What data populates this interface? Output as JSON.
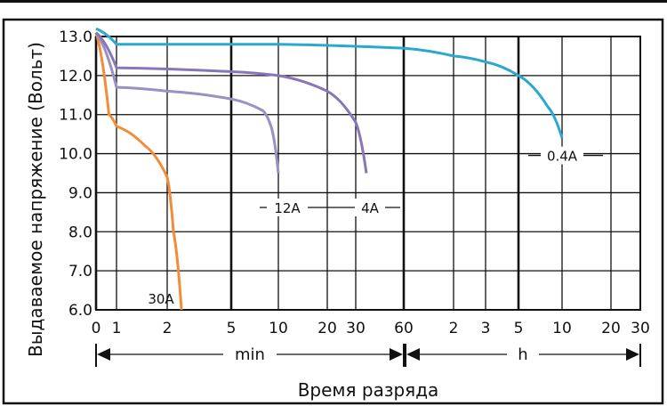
{
  "chart_data": {
    "type": "line",
    "ylabel": "Выдаваемое напряжение (Вольт)",
    "xlabel": "Время разряда",
    "ylim": [
      6.0,
      13.0
    ],
    "y_ticks": [
      "6.0",
      "7.0",
      "8.0",
      "9.0",
      "10.0",
      "11.0",
      "12.0",
      "13.0"
    ],
    "x_ticks": [
      "0",
      "1",
      "2",
      "5",
      "10",
      "20",
      "30",
      "60",
      "2",
      "3",
      "5",
      "10",
      "20",
      "30"
    ],
    "x_scale": "log-time (minutes, then hours)",
    "grid": true,
    "ranges": [
      {
        "label": "min",
        "from": "0 min",
        "to": "60 min"
      },
      {
        "label": "h",
        "from": "1 h",
        "to": "30 h"
      }
    ],
    "series": [
      {
        "name": "30A",
        "color": "#f28c38",
        "x": [
          "0 min",
          "0.5 min",
          "1 min",
          "1.5 min",
          "2 min",
          "2.2 min",
          "2.5 min"
        ],
        "y": [
          13.1,
          11.0,
          10.7,
          10.2,
          9.4,
          8.0,
          5.8
        ]
      },
      {
        "name": "12A",
        "color": "#9b8fc4",
        "x": [
          "0 min",
          "1 min",
          "2 min",
          "5 min",
          "8 min",
          "9 min",
          "10 min"
        ],
        "y": [
          13.1,
          11.7,
          11.6,
          11.4,
          11.1,
          10.7,
          9.5
        ]
      },
      {
        "name": "4A",
        "color": "#8776b8",
        "x": [
          "0 min",
          "1 min",
          "5 min",
          "10 min",
          "20 min",
          "30 min",
          "35 min"
        ],
        "y": [
          13.1,
          12.2,
          12.1,
          12.0,
          11.6,
          10.8,
          9.5
        ]
      },
      {
        "name": "0.4A",
        "color": "#2aa9cf",
        "x": [
          "0 min",
          "1 min",
          "10 min",
          "60 min",
          "2 h",
          "3 h",
          "5 h",
          "8 h",
          "10 h"
        ],
        "y": [
          13.2,
          12.8,
          12.8,
          12.7,
          12.5,
          12.35,
          12.0,
          11.2,
          10.4
        ]
      }
    ]
  }
}
